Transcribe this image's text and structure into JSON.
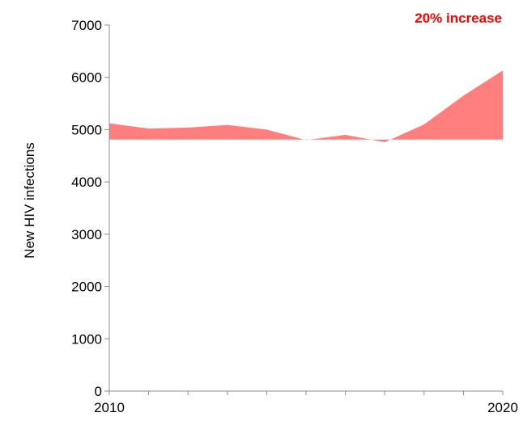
{
  "chart_data": {
    "type": "area",
    "title": "",
    "xlabel": "",
    "ylabel": "New HIV  infections",
    "x": [
      2010,
      2011,
      2012,
      2013,
      2014,
      2015,
      2016,
      2017,
      2018,
      2019,
      2020
    ],
    "x_tick_labels": [
      "2010",
      "2020"
    ],
    "series": [
      {
        "values": [
          5120,
          5020,
          5040,
          5090,
          5000,
          4800,
          4900,
          4760,
          5100,
          5650,
          6130
        ],
        "color": "#ff7f7f"
      }
    ],
    "area_baseline": 4810,
    "ylim": [
      0,
      7000
    ],
    "y_ticks": [
      0,
      1000,
      2000,
      3000,
      4000,
      5000,
      6000,
      7000
    ],
    "y_tick_labels": [
      "0",
      "1000",
      "2000",
      "3000",
      "4000",
      "5000",
      "6000",
      "7000"
    ],
    "grid": false,
    "annotations": [
      {
        "text": "20% increase",
        "color": "#ff0000",
        "position": "top-right"
      }
    ]
  }
}
